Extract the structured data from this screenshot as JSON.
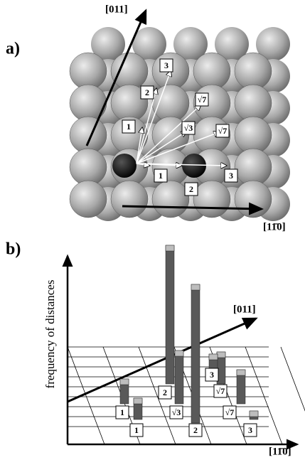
{
  "panel_a": {
    "label": "a)",
    "axis_011": "[011]",
    "axis_110": "[11̄0]",
    "distance_labels": [
      "3",
      "2",
      "1",
      "√7",
      "√3",
      "√7",
      "1",
      "2",
      "3"
    ]
  },
  "panel_b": {
    "label": "b)",
    "y_label": "frequency of distances",
    "axis_011": "[011]",
    "axis_110": "[11̄0]",
    "bars": [
      {
        "label": "1",
        "value": 3.5
      },
      {
        "label": "1",
        "value": 3.0
      },
      {
        "label": "√3",
        "value": 7.5
      },
      {
        "label": "2",
        "value": 19.5
      },
      {
        "label": "2",
        "value": 19.5
      },
      {
        "label": "√7",
        "value": 4.5
      },
      {
        "label": "3",
        "value": 2.0
      },
      {
        "label": "√7",
        "value": 4.8
      },
      {
        "label": "3",
        "value": 1.2
      }
    ]
  }
}
